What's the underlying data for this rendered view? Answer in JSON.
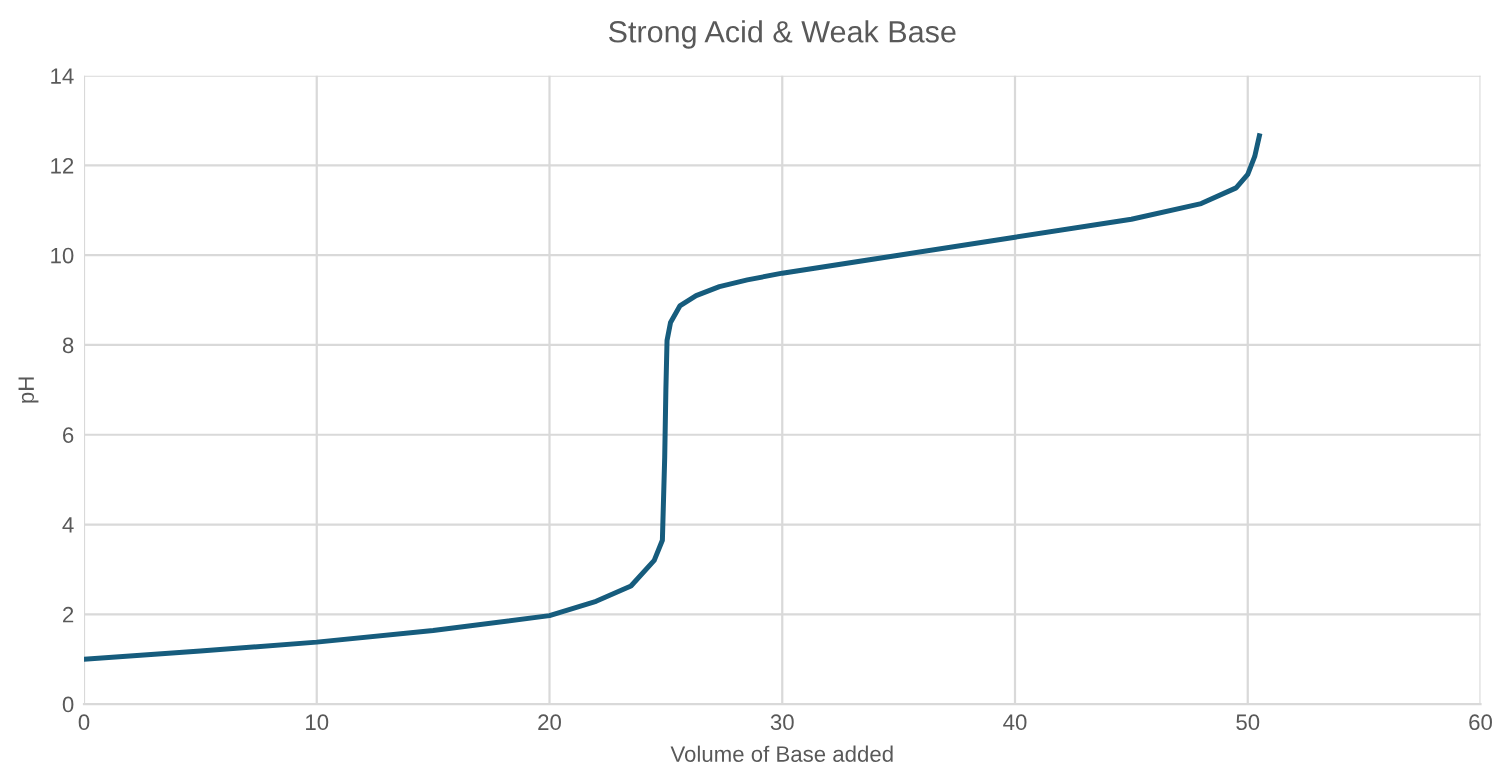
{
  "chart_data": {
    "type": "line",
    "title": "Strong Acid & Weak Base",
    "xlabel": "Volume of Base added",
    "ylabel": "pH",
    "series": [
      {
        "color": "#165c7d",
        "x": [
          0,
          5,
          10,
          15,
          20,
          22,
          23.5,
          24.5,
          24.85,
          24.95,
          25.0,
          25.05,
          25.2,
          25.6,
          26.3,
          27.3,
          28.5,
          30,
          35,
          40,
          45,
          48,
          49.5,
          50,
          50.3,
          50.5
        ],
        "values": [
          1.0,
          1.18,
          1.38,
          1.64,
          1.97,
          2.29,
          2.63,
          3.2,
          3.65,
          5.5,
          7.0,
          8.1,
          8.5,
          8.87,
          9.1,
          9.3,
          9.45,
          9.6,
          10.0,
          10.4,
          10.8,
          11.15,
          11.5,
          11.8,
          12.2,
          12.66
        ]
      }
    ],
    "xlim": [
      0,
      60
    ],
    "xticks": [
      0,
      10,
      20,
      30,
      40,
      50,
      60
    ],
    "ylim": [
      0,
      14
    ],
    "yticks": [
      0,
      2,
      4,
      6,
      8,
      10,
      12,
      14
    ],
    "grid": true,
    "marker": "none",
    "line_style": "solid"
  }
}
